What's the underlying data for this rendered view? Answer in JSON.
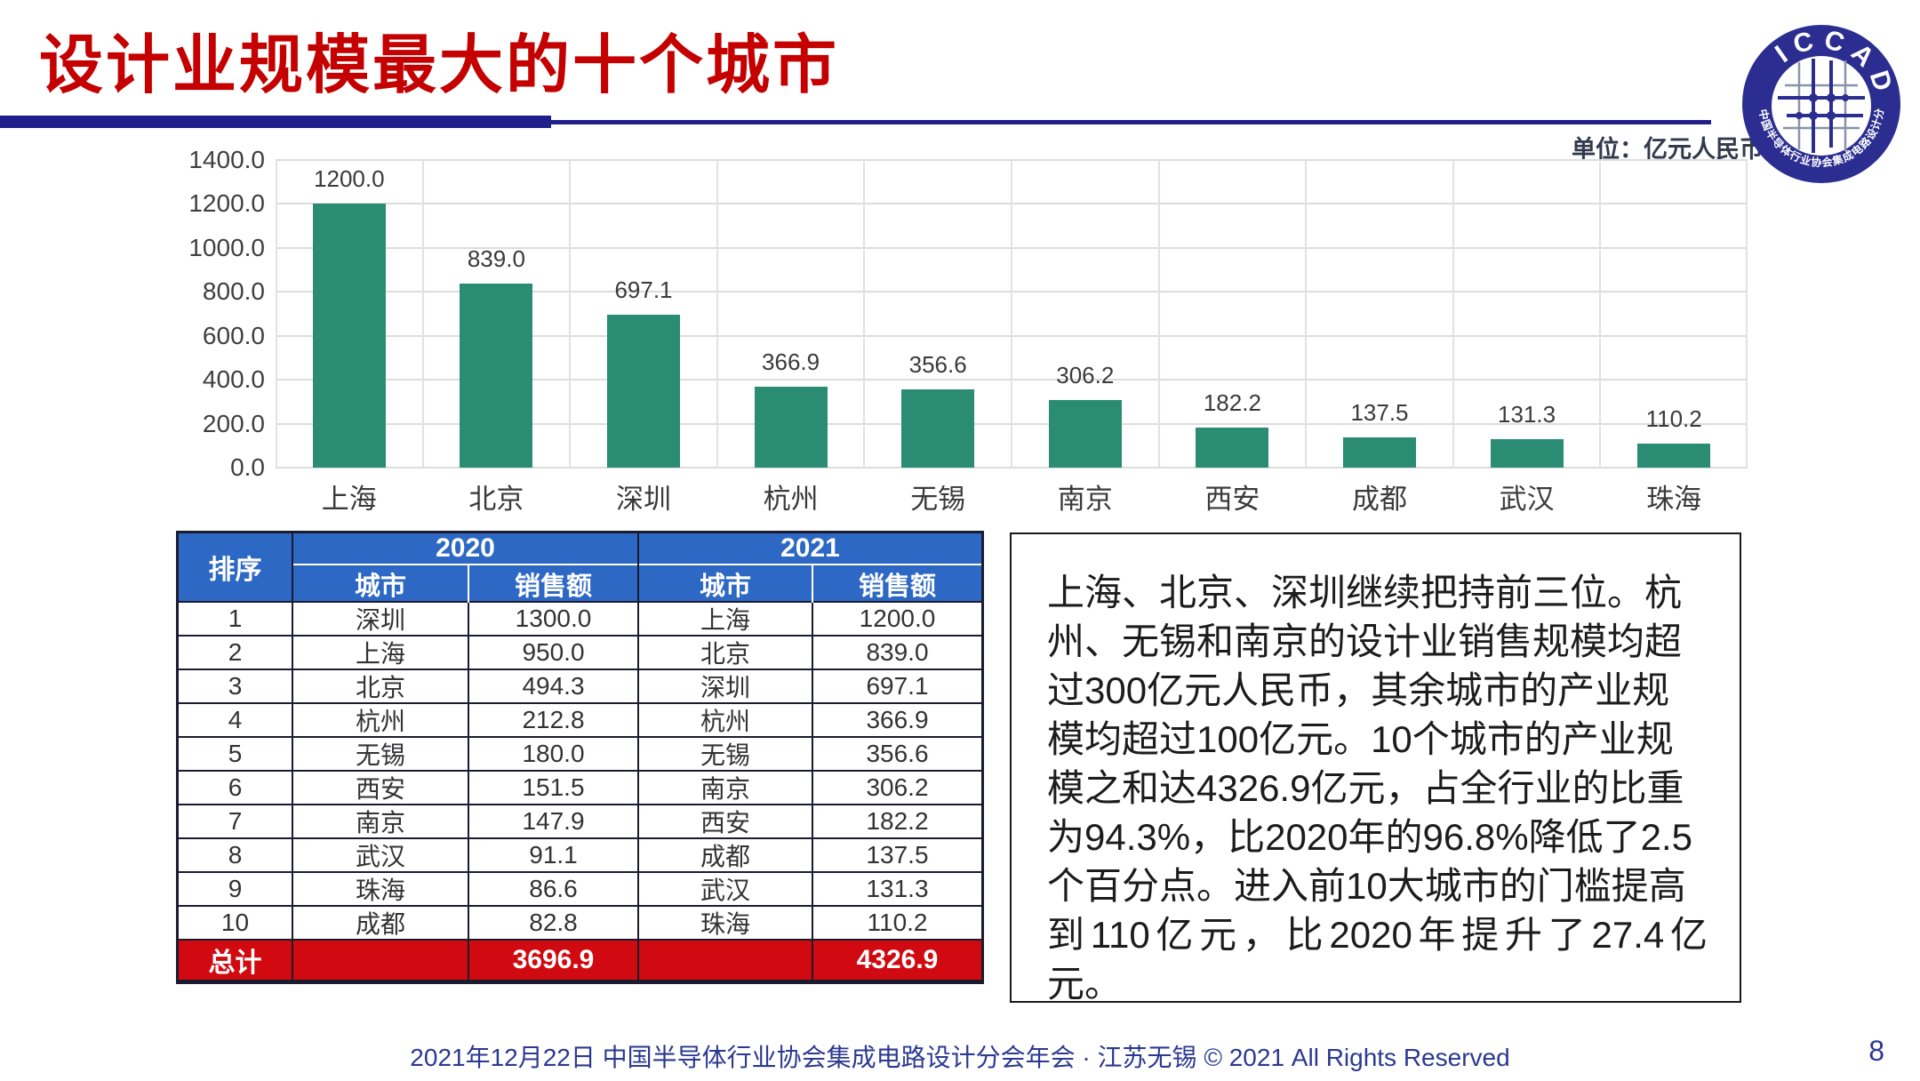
{
  "page": {
    "title": "设计业规模最大的十个城市",
    "unit_label": "单位：亿元人民币",
    "footer": "2021年12月22日 中国半导体行业协会集成电路设计分会年会 · 江苏无锡 © 2021 All Rights Reserved",
    "page_number": "8"
  },
  "logo": {
    "text": "ICCAD",
    "subtext": "中国半导体行业协会集成电路设计分会"
  },
  "chart_data": {
    "type": "bar",
    "categories": [
      "上海",
      "北京",
      "深圳",
      "杭州",
      "无锡",
      "南京",
      "西安",
      "成都",
      "武汉",
      "珠海"
    ],
    "values": [
      1200.0,
      839.0,
      697.1,
      366.9,
      356.6,
      306.2,
      182.2,
      137.5,
      131.3,
      110.2
    ],
    "title": "设计业规模最大的十个城市",
    "xlabel": "",
    "ylabel": "",
    "unit": "亿元人民币",
    "ylim": [
      0,
      1400
    ],
    "ytick_step": 200,
    "grid": true,
    "legend": false,
    "bar_color": "#2a8c73",
    "value_labels": [
      "1200.0",
      "839.0",
      "697.1",
      "366.9",
      "356.6",
      "306.2",
      "182.2",
      "137.5",
      "131.3",
      "110.2"
    ]
  },
  "table": {
    "rank_header": "排序",
    "group_headers": [
      "2020",
      "2021"
    ],
    "sub_headers": [
      "城市",
      "销售额"
    ],
    "rows": [
      {
        "rank": "1",
        "city_2020": "深圳",
        "sales_2020": "1300.0",
        "city_2021": "上海",
        "sales_2021": "1200.0"
      },
      {
        "rank": "2",
        "city_2020": "上海",
        "sales_2020": "950.0",
        "city_2021": "北京",
        "sales_2021": "839.0"
      },
      {
        "rank": "3",
        "city_2020": "北京",
        "sales_2020": "494.3",
        "city_2021": "深圳",
        "sales_2021": "697.1"
      },
      {
        "rank": "4",
        "city_2020": "杭州",
        "sales_2020": "212.8",
        "city_2021": "杭州",
        "sales_2021": "366.9"
      },
      {
        "rank": "5",
        "city_2020": "无锡",
        "sales_2020": "180.0",
        "city_2021": "无锡",
        "sales_2021": "356.6"
      },
      {
        "rank": "6",
        "city_2020": "西安",
        "sales_2020": "151.5",
        "city_2021": "南京",
        "sales_2021": "306.2"
      },
      {
        "rank": "7",
        "city_2020": "南京",
        "sales_2020": "147.9",
        "city_2021": "西安",
        "sales_2021": "182.2"
      },
      {
        "rank": "8",
        "city_2020": "武汉",
        "sales_2020": "91.1",
        "city_2021": "成都",
        "sales_2021": "137.5"
      },
      {
        "rank": "9",
        "city_2020": "珠海",
        "sales_2020": "86.6",
        "city_2021": "武汉",
        "sales_2021": "131.3"
      },
      {
        "rank": "10",
        "city_2020": "成都",
        "sales_2020": "82.8",
        "city_2021": "珠海",
        "sales_2021": "110.2"
      }
    ],
    "total_label": "总计",
    "total_2020": "3696.9",
    "total_2021": "4326.9"
  },
  "commentary": {
    "text": "上海、北京、深圳继续把持前三位。杭\n州、无锡和南京的设计业销售规模均超\n过300亿元人民币，其余城市的产业规\n模均超过100亿元。10个城市的产业规\n模之和达4326.9亿元，占全行业的比重\n为94.3%，比2020年的96.8%降低了2.5\n个百分点。进入前10大城市的门槛提高\n到110亿元，比2020年提升了27.4亿元。"
  },
  "colors": {
    "title_red": "#c40000",
    "divider_navy": "#1f1f8b",
    "bar_teal": "#2a8c73",
    "header_blue": "#2d68c4",
    "total_red": "#d00a10",
    "footer_navy": "#2b3990"
  }
}
